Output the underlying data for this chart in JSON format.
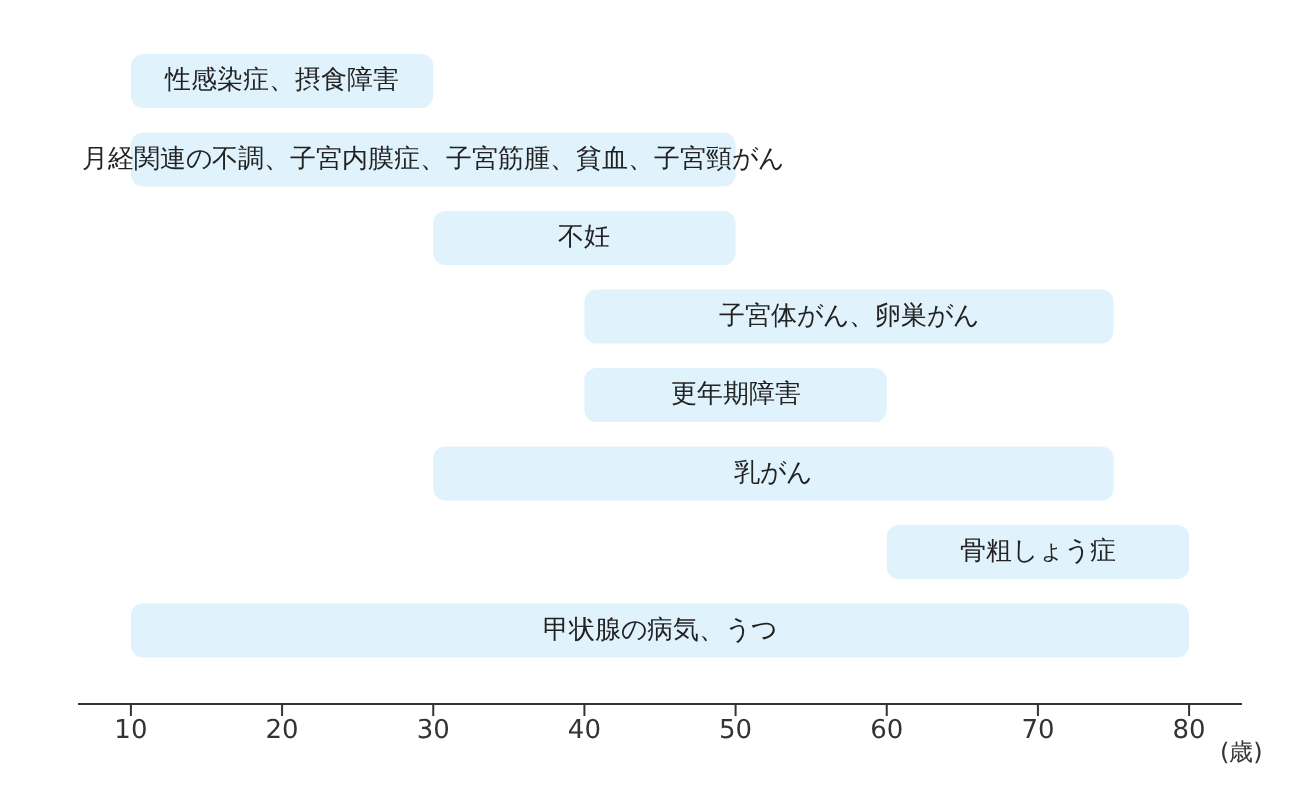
{
  "chart_data": {
    "type": "bar",
    "orientation": "horizontal",
    "xlabel": "(歳)",
    "categories": [
      "性感染症、摂食障害",
      "月経関連の不調、子宮内膜症、子宮筋腫、貧血、子宮頸がん",
      "不妊",
      "子宮体がん、卵巣がん",
      "更年期障害",
      "乳がん",
      "骨粗しょう症",
      "甲状腺の病気、うつ"
    ],
    "base": [
      10,
      10,
      30,
      40,
      40,
      30,
      60,
      10
    ],
    "values": [
      20,
      40,
      20,
      35,
      20,
      45,
      20,
      70
    ],
    "color": "#e0f2fc",
    "xlim": [
      6.5,
      83.5
    ],
    "xticks": [
      10,
      20,
      30,
      40,
      50,
      60,
      70,
      80
    ],
    "tick_labels": "x",
    "grid": false
  }
}
